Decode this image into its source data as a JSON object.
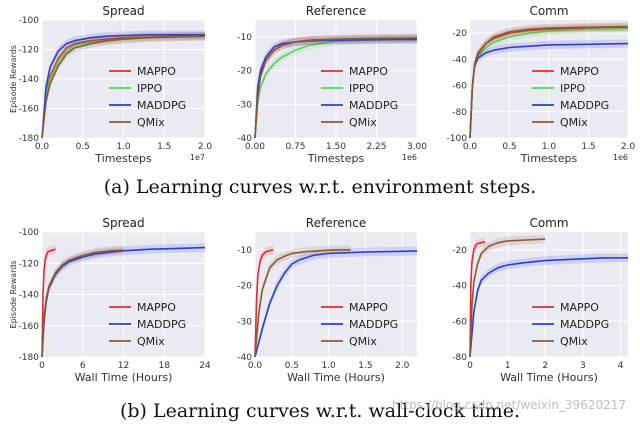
{
  "colors": {
    "MAPPO": "#e8292b",
    "IPPO": "#5cd05c",
    "MADDPG": "#2b3fd6",
    "QMix": "#8b5a33"
  },
  "captions": {
    "top": "(a) Learning curves w.r.t. environment steps.",
    "bottom": "(b) Learning curves w.r.t. wall-clock time."
  },
  "watermark": "https://blog.csdn.net/weixin_39620217",
  "chart_data": [
    {
      "type": "line",
      "title": "Spread",
      "xlabel": "Timesteps",
      "ylabel": "Episode Rewards",
      "xlim": [
        0,
        2.0
      ],
      "ylim": [
        -180,
        -100
      ],
      "xticks": [
        "0.0",
        "0.5",
        "1.0",
        "1.5",
        "2.0"
      ],
      "yticks": [
        "-180",
        "-160",
        "-140",
        "-120",
        "-100"
      ],
      "x_multiplier": "1e7",
      "legend_position": "lower-right",
      "grid": true,
      "series": [
        {
          "name": "MAPPO",
          "x": [
            0,
            0.05,
            0.1,
            0.2,
            0.3,
            0.4,
            0.6,
            0.8,
            1.0,
            1.3,
            1.6,
            2.0
          ],
          "y": [
            -180,
            -150,
            -138,
            -126,
            -119,
            -116,
            -114,
            -113,
            -112,
            -111.5,
            -111,
            -111
          ]
        },
        {
          "name": "IPPO",
          "x": [
            0,
            0.05,
            0.1,
            0.2,
            0.3,
            0.4,
            0.6,
            0.8,
            1.0,
            1.3,
            1.6,
            2.0
          ],
          "y": [
            -180,
            -152,
            -140,
            -128,
            -121,
            -117,
            -115,
            -114,
            -113,
            -112,
            -111.5,
            -111
          ]
        },
        {
          "name": "MADDPG",
          "x": [
            0,
            0.05,
            0.1,
            0.2,
            0.3,
            0.4,
            0.6,
            0.8,
            1.0,
            1.3,
            1.6,
            2.0
          ],
          "y": [
            -180,
            -145,
            -132,
            -121,
            -116,
            -114,
            -112,
            -111,
            -110.5,
            -110,
            -110,
            -110
          ]
        },
        {
          "name": "QMix",
          "x": [
            0,
            0.05,
            0.1,
            0.2,
            0.3,
            0.4,
            0.6,
            0.8,
            1.0,
            1.3,
            1.6,
            2.0
          ],
          "y": [
            -180,
            -155,
            -143,
            -131,
            -123,
            -119,
            -116,
            -114,
            -113,
            -112,
            -111.5,
            -111
          ]
        }
      ]
    },
    {
      "type": "line",
      "title": "Reference",
      "xlabel": "Timesteps",
      "ylabel": "",
      "xlim": [
        0,
        3.0
      ],
      "ylim": [
        -40,
        -5
      ],
      "xticks": [
        "0.00",
        "0.75",
        "1.50",
        "2.25",
        "3.00"
      ],
      "yticks": [
        "-40",
        "-30",
        "-20",
        "-10"
      ],
      "x_multiplier": "1e6",
      "legend_position": "lower-right",
      "grid": true,
      "series": [
        {
          "name": "MAPPO",
          "x": [
            0,
            0.05,
            0.1,
            0.2,
            0.35,
            0.5,
            0.75,
            1.0,
            1.5,
            2.0,
            2.5,
            3.0
          ],
          "y": [
            -40,
            -26,
            -21,
            -17,
            -14,
            -12.5,
            -11.5,
            -11,
            -10.8,
            -10.6,
            -10.5,
            -10.5
          ]
        },
        {
          "name": "IPPO",
          "x": [
            0,
            0.05,
            0.1,
            0.2,
            0.35,
            0.5,
            0.75,
            1.0,
            1.5,
            2.0,
            2.5,
            3.0
          ],
          "y": [
            -40,
            -30,
            -25,
            -21,
            -18,
            -16,
            -14,
            -12.5,
            -11.3,
            -11,
            -10.8,
            -10.8
          ]
        },
        {
          "name": "MADDPG",
          "x": [
            0,
            0.05,
            0.1,
            0.2,
            0.35,
            0.5,
            0.75,
            1.0,
            1.5,
            2.0,
            2.5,
            3.0
          ],
          "y": [
            -40,
            -25,
            -20,
            -16,
            -13,
            -12,
            -11.5,
            -11.2,
            -11,
            -10.9,
            -10.8,
            -10.8
          ]
        },
        {
          "name": "QMix",
          "x": [
            0,
            0.05,
            0.1,
            0.2,
            0.35,
            0.5,
            0.75,
            1.0,
            1.5,
            2.0,
            2.5,
            3.0
          ],
          "y": [
            -40,
            -28,
            -22,
            -17,
            -14,
            -12.5,
            -11.5,
            -11,
            -10.7,
            -10.5,
            -10.4,
            -10.3
          ]
        }
      ]
    },
    {
      "type": "line",
      "title": "Comm",
      "xlabel": "Timesteps",
      "ylabel": "",
      "xlim": [
        0,
        2.0
      ],
      "ylim": [
        -100,
        -10
      ],
      "xticks": [
        "0.0",
        "0.5",
        "1.0",
        "1.5",
        "2.0"
      ],
      "yticks": [
        "-100",
        "-80",
        "-60",
        "-40",
        "-20"
      ],
      "x_multiplier": "1e6",
      "legend_position": "lower-right",
      "grid": true,
      "series": [
        {
          "name": "MAPPO",
          "x": [
            0,
            0.03,
            0.06,
            0.1,
            0.2,
            0.3,
            0.5,
            0.75,
            1.0,
            1.5,
            2.0
          ],
          "y": [
            -100,
            -60,
            -43,
            -35,
            -28,
            -24,
            -20,
            -18,
            -17,
            -16,
            -15.5
          ]
        },
        {
          "name": "IPPO",
          "x": [
            0,
            0.03,
            0.06,
            0.1,
            0.2,
            0.3,
            0.5,
            0.75,
            1.0,
            1.5,
            2.0
          ],
          "y": [
            -100,
            -62,
            -45,
            -38,
            -31,
            -27,
            -23,
            -20,
            -18.5,
            -17,
            -16.5
          ]
        },
        {
          "name": "MADDPG",
          "x": [
            0,
            0.03,
            0.06,
            0.1,
            0.2,
            0.3,
            0.5,
            0.75,
            1.0,
            1.5,
            2.0
          ],
          "y": [
            -100,
            -60,
            -45,
            -39,
            -35,
            -33,
            -31,
            -30,
            -29,
            -28.5,
            -28
          ]
        },
        {
          "name": "QMix",
          "x": [
            0,
            0.03,
            0.06,
            0.1,
            0.2,
            0.3,
            0.5,
            0.75,
            1.0,
            1.5,
            2.0
          ],
          "y": [
            -100,
            -61,
            -44,
            -36,
            -28,
            -23,
            -19,
            -17,
            -16,
            -15.5,
            -15
          ]
        }
      ]
    },
    {
      "type": "line",
      "title": "Spread",
      "xlabel": "Wall Time (Hours)",
      "ylabel": "Episode Rewards",
      "xlim": [
        0,
        24
      ],
      "ylim": [
        -180,
        -100
      ],
      "xticks": [
        "0",
        "6",
        "12",
        "18",
        "24"
      ],
      "yticks": [
        "-180",
        "-160",
        "-140",
        "-120",
        "-100"
      ],
      "legend_position": "lower-right",
      "grid": true,
      "series": [
        {
          "name": "MAPPO",
          "x": [
            0,
            0.15,
            0.3,
            0.5,
            0.8,
            1.2,
            1.6,
            2.0
          ],
          "y": [
            -180,
            -140,
            -125,
            -117,
            -113,
            -112,
            -111.5,
            -111
          ]
        },
        {
          "name": "MADDPG",
          "x": [
            0,
            0.3,
            0.6,
            1.0,
            2,
            3,
            4,
            6,
            8,
            12,
            16,
            20,
            24
          ],
          "y": [
            -180,
            -158,
            -145,
            -136,
            -127,
            -122,
            -119,
            -116,
            -114,
            -112,
            -111,
            -110.5,
            -110
          ]
        },
        {
          "name": "QMix",
          "x": [
            0,
            0.3,
            0.6,
            1.0,
            2,
            3,
            4,
            6,
            8,
            10,
            12
          ],
          "y": [
            -180,
            -155,
            -143,
            -135,
            -126,
            -121,
            -118,
            -115,
            -113,
            -112,
            -111.5
          ]
        }
      ]
    },
    {
      "type": "line",
      "title": "Reference",
      "xlabel": "Wall Time (Hours)",
      "ylabel": "",
      "xlim": [
        0,
        2.2
      ],
      "ylim": [
        -40,
        -5
      ],
      "xticks": [
        "0.0",
        "0.5",
        "1.0",
        "1.5",
        "2.0"
      ],
      "yticks": [
        "-40",
        "-30",
        "-20",
        "-10"
      ],
      "legend_position": "lower-right",
      "grid": true,
      "series": [
        {
          "name": "MAPPO",
          "x": [
            0,
            0.02,
            0.04,
            0.07,
            0.1,
            0.15,
            0.2,
            0.25
          ],
          "y": [
            -40,
            -24,
            -17,
            -13,
            -11.5,
            -10.5,
            -10.2,
            -10
          ]
        },
        {
          "name": "MADDPG",
          "x": [
            0,
            0.1,
            0.2,
            0.3,
            0.4,
            0.5,
            0.6,
            0.8,
            1.0,
            1.5,
            2.0,
            2.2
          ],
          "y": [
            -40,
            -32,
            -25,
            -20,
            -16.5,
            -14,
            -12.8,
            -11.5,
            -11,
            -10.6,
            -10.4,
            -10.3
          ]
        },
        {
          "name": "QMix",
          "x": [
            0,
            0.05,
            0.1,
            0.2,
            0.3,
            0.4,
            0.5,
            0.7,
            0.9,
            1.1,
            1.3
          ],
          "y": [
            -40,
            -28,
            -21,
            -15,
            -12.8,
            -11.8,
            -11,
            -10.5,
            -10.2,
            -10,
            -10
          ]
        }
      ]
    },
    {
      "type": "line",
      "title": "Comm",
      "xlabel": "Wall Time (Hours)",
      "ylabel": "",
      "xlim": [
        0,
        4.2
      ],
      "ylim": [
        -80,
        -10
      ],
      "xticks": [
        "0",
        "1",
        "2",
        "3",
        "4"
      ],
      "yticks": [
        "-80",
        "-60",
        "-40",
        "-20"
      ],
      "legend_position": "lower-right",
      "grid": true,
      "series": [
        {
          "name": "MAPPO",
          "x": [
            0,
            0.02,
            0.05,
            0.1,
            0.15,
            0.2,
            0.3,
            0.4
          ],
          "y": [
            -80,
            -40,
            -27,
            -20,
            -17.5,
            -16.5,
            -16,
            -15.5
          ]
        },
        {
          "name": "MADDPG",
          "x": [
            0,
            0.1,
            0.2,
            0.3,
            0.5,
            0.75,
            1.0,
            1.5,
            2.0,
            2.5,
            3.0,
            3.5,
            4.0,
            4.2
          ],
          "y": [
            -80,
            -55,
            -43,
            -37,
            -33,
            -30,
            -28.5,
            -27,
            -26,
            -25.5,
            -25,
            -24.5,
            -24.5,
            -24.5
          ]
        },
        {
          "name": "QMix",
          "x": [
            0,
            0.05,
            0.1,
            0.2,
            0.3,
            0.5,
            0.75,
            1.0,
            1.5,
            2.0
          ],
          "y": [
            -80,
            -52,
            -38,
            -28,
            -22,
            -18,
            -16,
            -15,
            -14.5,
            -14
          ]
        }
      ]
    }
  ]
}
